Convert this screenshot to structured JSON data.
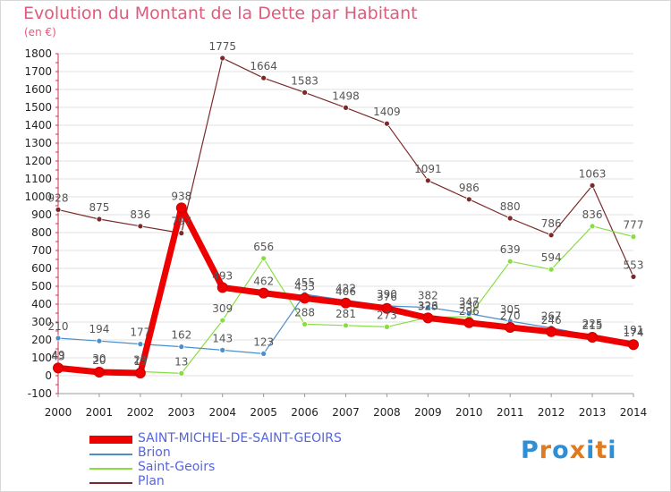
{
  "title": "Evolution du Montant de la Dette par Habitant",
  "unit": "(en €)",
  "logo": {
    "text": "Proxiti",
    "colors": [
      "#2e8fd6",
      "#e07a20",
      "#2e8fd6",
      "#e07a20",
      "#2e8fd6",
      "#e07a20",
      "#2e8fd6"
    ]
  },
  "chart_data": {
    "type": "line",
    "x": [
      2000,
      2001,
      2002,
      2003,
      2004,
      2005,
      2006,
      2007,
      2008,
      2009,
      2010,
      2011,
      2012,
      2013,
      2014
    ],
    "ylim": [
      -100,
      1800
    ],
    "yticks": [
      -100,
      0,
      100,
      200,
      300,
      400,
      500,
      600,
      700,
      800,
      900,
      1000,
      1100,
      1200,
      1300,
      1400,
      1500,
      1600,
      1700,
      1800
    ],
    "grid": true,
    "legend_position": "bottom-left",
    "series": [
      {
        "name": "SAINT-MICHEL-DE-SAINT-GEOIRS",
        "color": "#ee0000",
        "width": 7,
        "values": [
          43,
          20,
          15,
          938,
          493,
          462,
          433,
          406,
          376,
          323,
          296,
          270,
          246,
          215,
          174
        ],
        "labels": [
          "43",
          "20",
          "15",
          "938",
          "493",
          "462",
          "433",
          "406",
          "376",
          "323",
          "296",
          "270",
          "246",
          "215",
          "174"
        ]
      },
      {
        "name": "Brion",
        "color": "#4a8fcc",
        "width": 1.2,
        "values": [
          210,
          194,
          177,
          162,
          143,
          123,
          455,
          422,
          390,
          382,
          347,
          305,
          267,
          225,
          191
        ],
        "labels": [
          "210",
          "194",
          "177",
          "162",
          "143",
          "123",
          "455",
          "422",
          "390",
          "382",
          "347",
          "305",
          "267",
          "225",
          "191"
        ]
      },
      {
        "name": "Saint-Geoirs",
        "color": "#88dd44",
        "width": 1.2,
        "values": [
          49,
          30,
          23,
          13,
          309,
          656,
          288,
          281,
          273,
          326,
          330,
          639,
          594,
          836,
          777
        ],
        "labels": [
          "49",
          "30",
          "23",
          "13",
          "309",
          "656",
          "288",
          "281",
          "273",
          "326",
          "330",
          "639",
          "594",
          "836",
          "777"
        ]
      },
      {
        "name": "Plan",
        "color": "#7a2a2a",
        "width": 1.2,
        "values": [
          928,
          875,
          836,
          797,
          1775,
          1664,
          1583,
          1498,
          1409,
          1091,
          986,
          880,
          786,
          1063,
          553
        ],
        "labels": [
          "928",
          "875",
          "836",
          "797",
          "1775",
          "1664",
          "1583",
          "1498",
          "1409",
          "1091",
          "986",
          "880",
          "786",
          "1063",
          "553"
        ]
      }
    ]
  }
}
